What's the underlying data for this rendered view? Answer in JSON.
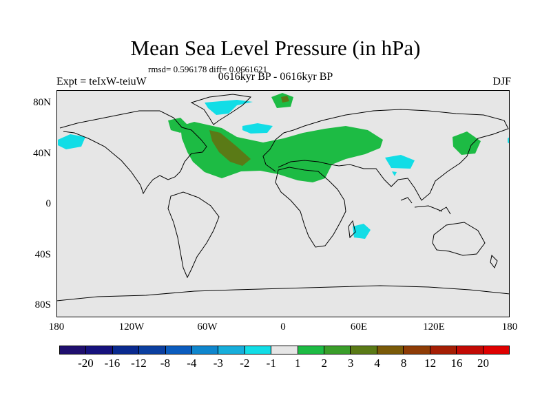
{
  "title": "Mean Sea Level Pressure (in hPa)",
  "stats": "rmsd= 0.596178 diff= 0.0661621",
  "experiment": "Expt = teIxW-teiuW",
  "period": "0616kyr BP - 0616kyr BP",
  "season": "DJF",
  "lat_labels": [
    "80N",
    "40N",
    "0",
    "40S",
    "80S"
  ],
  "lon_labels": [
    "180",
    "120W",
    "60W",
    "0",
    "60E",
    "120E",
    "180"
  ],
  "colorbar": {
    "labels": [
      "-20",
      "-16",
      "-12",
      "-8",
      "-4",
      "-3",
      "-2",
      "-1",
      "1",
      "2",
      "3",
      "4",
      "8",
      "12",
      "16",
      "20"
    ],
    "colors": [
      "#1f0f6e",
      "#16127d",
      "#0a2a8f",
      "#0b3fa0",
      "#0b5cbe",
      "#0f86cd",
      "#17aedb",
      "#12dde6",
      "#e6e6e6",
      "#1dbb44",
      "#3a9e2a",
      "#5a7a16",
      "#7a5a08",
      "#8e3c06",
      "#a51e04",
      "#c20a04",
      "#df0000"
    ]
  },
  "map_colors": {
    "background": "#e6e6e6",
    "pos_1_2": "#1dbb44",
    "pos_3_4": "#5a7a16",
    "neg_1_2": "#12dde6",
    "coast": "#000000"
  }
}
